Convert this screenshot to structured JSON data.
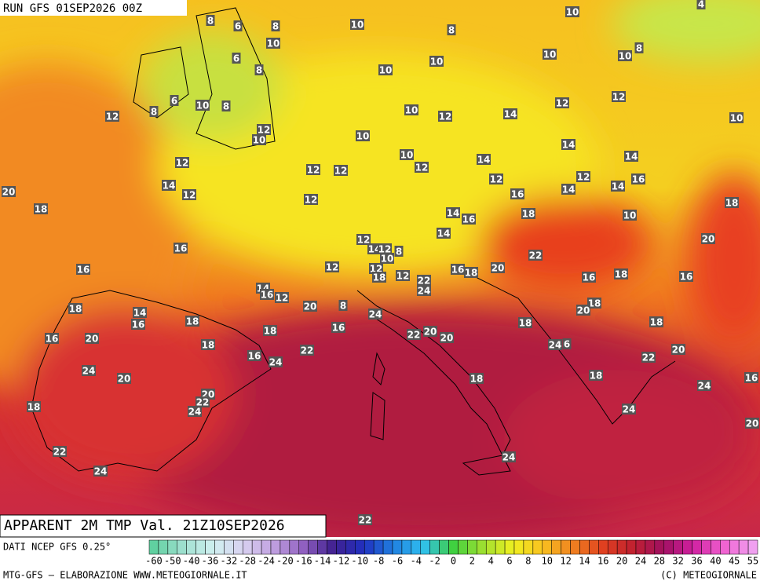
{
  "header": {
    "run": "RUN GFS 01SEP2026 00Z"
  },
  "map": {
    "title": "APPARENT 2M TMP Val. 21Z10SEP2026",
    "labels": [
      8,
      6,
      8,
      10,
      10,
      4,
      8,
      10,
      6,
      8,
      10,
      10,
      10,
      10,
      8,
      6,
      8,
      10,
      8,
      12,
      10,
      12,
      14,
      12,
      12,
      10,
      12,
      10,
      10,
      14,
      12,
      12,
      12,
      10,
      12,
      14,
      14,
      20,
      14,
      12,
      12,
      12,
      12,
      16,
      14,
      14,
      16,
      18,
      14,
      16,
      18,
      10,
      18,
      20,
      16,
      12,
      14,
      14,
      12,
      10,
      8,
      22,
      16,
      12,
      12,
      18,
      12,
      22,
      16,
      18,
      20,
      16,
      18,
      16,
      14,
      16,
      12,
      24,
      18,
      14,
      16,
      20,
      8,
      24,
      18,
      20,
      18,
      18,
      16,
      18,
      18,
      16,
      20,
      18,
      22,
      22,
      20,
      20,
      24,
      6,
      20,
      16,
      24,
      22,
      24,
      20,
      18,
      18,
      24,
      16,
      20,
      22,
      24,
      24,
      18,
      20,
      22,
      24,
      24,
      22
    ]
  },
  "footer": {
    "source": "DATI NCEP GFS 0.25°",
    "credit": "MTG-GFS — ELABORAZIONE WWW.METEOGIORNALE.IT",
    "copyright": "(C) METEOGIORNALE",
    "scale": [
      -60,
      -50,
      -40,
      -36,
      -32,
      -28,
      -24,
      -20,
      -16,
      -14,
      -12,
      -10,
      -8,
      -6,
      -4,
      -2,
      0,
      2,
      4,
      6,
      8,
      10,
      12,
      14,
      16,
      20,
      24,
      28,
      32,
      36,
      40,
      45,
      55
    ]
  }
}
